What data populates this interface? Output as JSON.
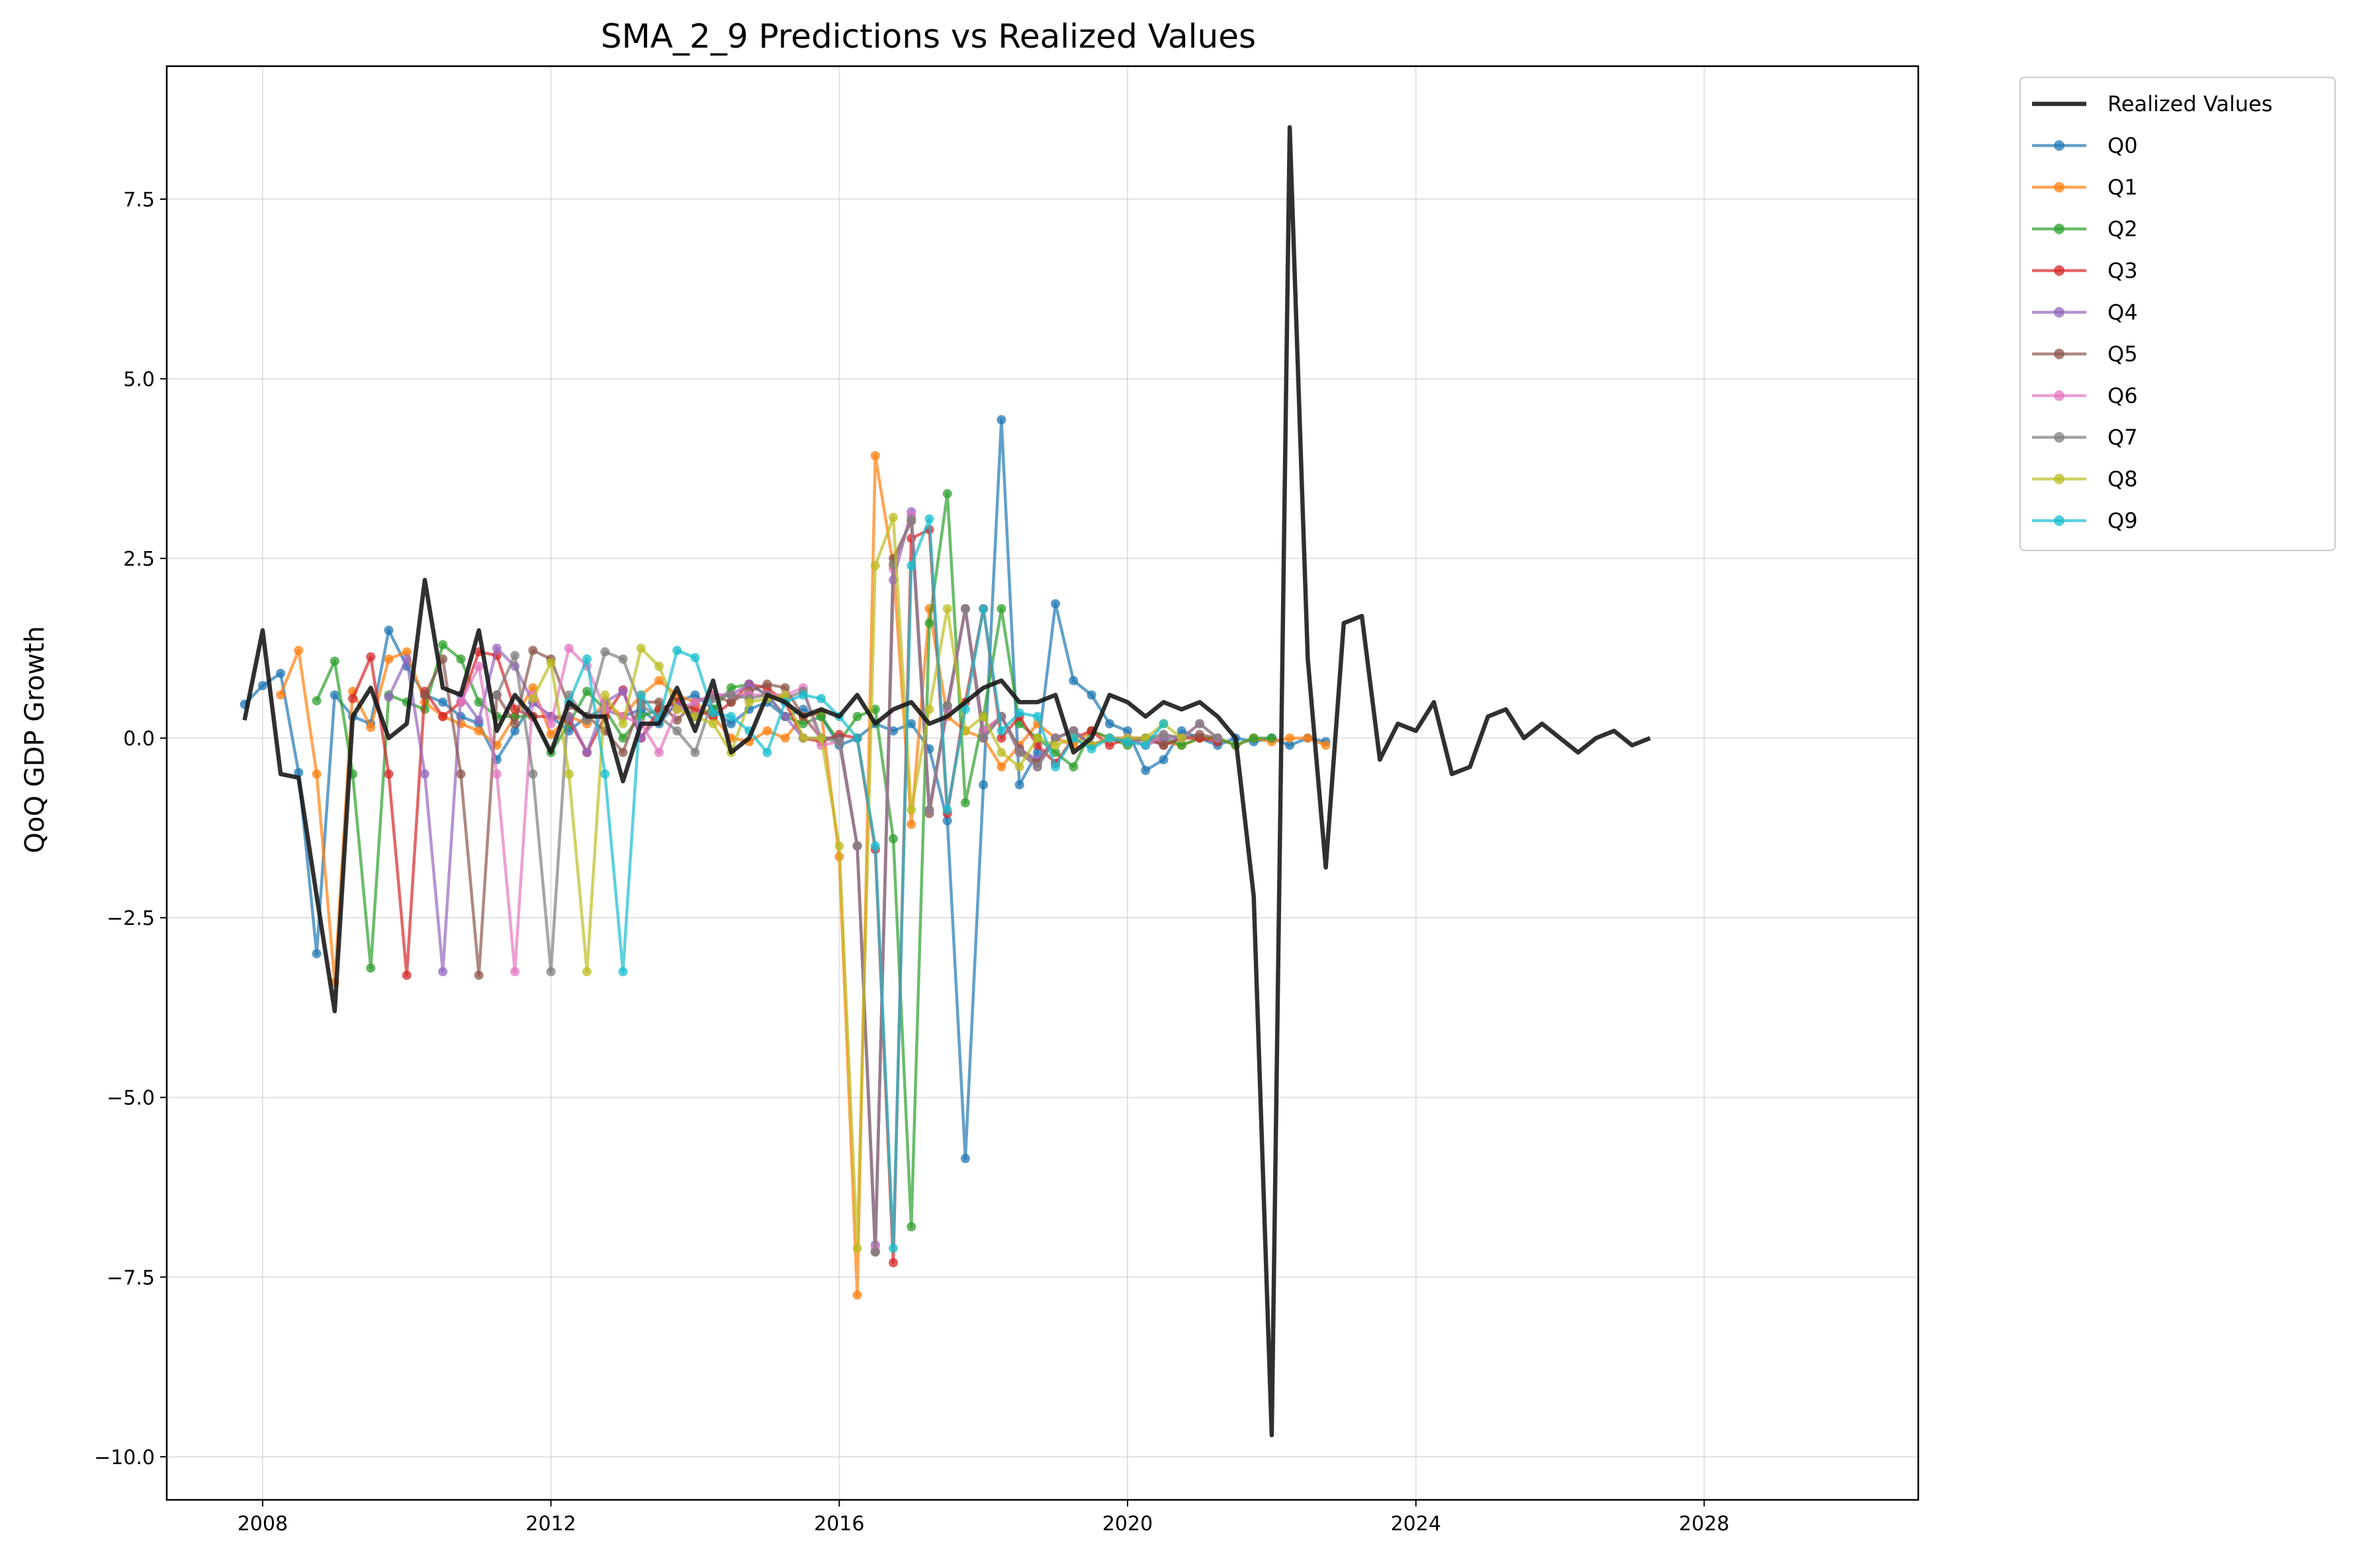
{
  "chart_data": {
    "type": "line",
    "title": "SMA_2_9 Predictions vs Realized Values",
    "xlabel": "",
    "ylabel": "QoQ GDP Growth",
    "xlim": [
      2006.67,
      2030.97
    ],
    "ylim": [
      -10.6,
      9.35
    ],
    "x_ticks": [
      2008,
      2012,
      2016,
      2020,
      2024,
      2028
    ],
    "x_tick_labels": [
      "2008",
      "2012",
      "2016",
      "2020",
      "2024",
      "2028"
    ],
    "y_ticks": [
      7.5,
      5.0,
      2.5,
      0.0,
      -2.5,
      -5.0,
      -7.5,
      -10.0
    ],
    "y_tick_labels": [
      "7.5",
      "5.0",
      "2.5",
      "0.0",
      "−2.5",
      "−5.0",
      "−7.5",
      "−10.0"
    ],
    "grid": true,
    "legend_position": "outside-top-right",
    "colors": {
      "realized": "#1a1a1a",
      "series": [
        "#1f77b4",
        "#ff7f0e",
        "#2ca02c",
        "#d62728",
        "#9467bd",
        "#8c564b",
        "#e377c2",
        "#7f7f7f",
        "#bcbd22",
        "#17becf"
      ]
    },
    "realized": {
      "name": "Realized Values",
      "start": 2007.75,
      "step": 0.25,
      "values": [
        0.25,
        1.5,
        -0.5,
        -0.55,
        -2.2,
        -3.8,
        0.3,
        0.7,
        0.0,
        0.2,
        2.2,
        0.7,
        0.6,
        1.5,
        0.1,
        0.6,
        0.3,
        -0.2,
        0.5,
        0.3,
        0.3,
        -0.6,
        0.2,
        0.2,
        0.7,
        0.1,
        0.8,
        -0.2,
        0.0,
        0.6,
        0.5,
        0.3,
        0.4,
        0.3,
        0.6,
        0.2,
        0.4,
        0.5,
        0.2,
        0.3,
        0.5,
        0.7,
        0.8,
        0.5,
        0.5,
        0.6,
        -0.2,
        0.0,
        0.6,
        0.5,
        0.3,
        0.5,
        0.4,
        0.5,
        0.3,
        0.0,
        -2.2,
        -9.7,
        8.5,
        1.1,
        -1.8,
        1.6,
        1.7,
        -0.3,
        0.2,
        0.1,
        0.5,
        -0.5,
        -0.4,
        0.3,
        0.4,
        0.0,
        0.2,
        0.0,
        -0.2,
        0.0,
        0.1,
        -0.1,
        0.0
      ]
    },
    "series": [
      {
        "name": "Q0",
        "start": 2007.75,
        "values": [
          0.47,
          0.73,
          0.9,
          -0.48,
          -3.0,
          0.6,
          0.3,
          0.2,
          1.5,
          1.0,
          0.6,
          0.5,
          0.3,
          0.2,
          -0.3,
          0.1,
          0.5,
          0.3,
          0.1,
          0.3,
          0.4,
          0.3,
          0.4,
          0.2,
          0.5,
          0.6,
          0.4,
          0.2,
          0.4,
          0.5,
          0.3,
          0.4,
          0.3,
          -0.1,
          0.0,
          0.2,
          0.1,
          0.2,
          -0.15,
          -1.15,
          -5.85,
          -0.65,
          4.43,
          -0.65,
          -0.2,
          1.87,
          0.8,
          0.6,
          0.2,
          0.1,
          -0.45,
          -0.3,
          0.1,
          0.0,
          -0.1,
          0.0,
          -0.05,
          0.0,
          -0.1,
          0.0,
          -0.05
        ]
      },
      {
        "name": "Q1",
        "start": 2008.25,
        "values": [
          0.6,
          1.22,
          -0.5,
          -3.4,
          0.65,
          0.15,
          1.1,
          1.2,
          0.5,
          0.3,
          0.2,
          0.1,
          -0.1,
          0.3,
          0.7,
          0.05,
          0.3,
          0.2,
          0.5,
          0.3,
          0.6,
          0.8,
          0.6,
          0.5,
          0.3,
          0.0,
          -0.05,
          0.1,
          0.0,
          0.3,
          0.35,
          -1.65,
          -7.75,
          3.93,
          2.4,
          -1.2,
          1.8,
          0.3,
          0.1,
          0.0,
          -0.4,
          -0.1,
          0.2,
          0.0,
          -0.1,
          0.1,
          0.0,
          -0.05,
          0.0,
          -0.05,
          -0.1,
          0.0,
          0.0,
          -0.1,
          0.0,
          -0.05,
          0.0,
          0.0,
          -0.1
        ]
      },
      {
        "name": "Q2",
        "start": 2008.75,
        "values": [
          0.52,
          1.07,
          -0.5,
          -3.2,
          0.6,
          0.5,
          0.4,
          1.3,
          1.1,
          0.5,
          0.3,
          0.3,
          0.3,
          -0.2,
          0.2,
          0.65,
          0.4,
          0.0,
          0.3,
          0.4,
          0.5,
          0.3,
          0.4,
          0.7,
          0.75,
          0.6,
          0.3,
          0.2,
          0.3,
          -0.05,
          0.3,
          0.4,
          -1.4,
          -6.8,
          1.6,
          3.4,
          -0.9,
          0.3,
          1.8,
          0.2,
          0.0,
          -0.2,
          -0.4,
          0.1,
          0.0,
          -0.1,
          0.0,
          0.0,
          -0.1,
          0.0,
          0.0,
          -0.1,
          0.0,
          0.0
        ]
      },
      {
        "name": "Q3",
        "start": 2009.25,
        "values": [
          0.55,
          1.13,
          -0.5,
          -3.3,
          0.65,
          0.3,
          0.5,
          1.2,
          1.15,
          0.4,
          0.3,
          0.3,
          0.25,
          -0.2,
          0.3,
          0.67,
          0.0,
          0.4,
          0.5,
          0.4,
          0.3,
          0.5,
          0.75,
          0.7,
          0.5,
          0.0,
          -0.05,
          0.05,
          0.0,
          -1.55,
          -7.3,
          2.78,
          2.9,
          -1.05,
          0.5,
          1.8,
          0.0,
          0.3,
          -0.1,
          -0.35,
          0.0,
          0.1,
          -0.1,
          0.0,
          0.0,
          -0.1,
          0.0,
          0.0,
          -0.05
        ]
      },
      {
        "name": "Q4",
        "start": 2009.75,
        "values": [
          0.57,
          1.1,
          -0.5,
          -3.25,
          0.6,
          0.25,
          1.25,
          1.0,
          0.5,
          0.3,
          0.3,
          -0.2,
          0.5,
          0.65,
          0.0,
          0.3,
          0.45,
          0.3,
          0.6,
          0.6,
          0.75,
          0.6,
          0.3,
          0.0,
          0.0,
          0.0,
          -1.5,
          -7.05,
          2.2,
          3.15,
          -1.0,
          0.4,
          1.8,
          0.0,
          0.3,
          -0.15,
          -0.3,
          0.0,
          0.1,
          -0.1,
          0.0,
          0.0,
          -0.1,
          0.0,
          0.0
        ]
      },
      {
        "name": "Q5",
        "start": 2010.25,
        "values": [
          0.6,
          1.1,
          -0.5,
          -3.3,
          0.6,
          0.2,
          1.22,
          1.1,
          0.45,
          0.3,
          0.1,
          -0.2,
          0.5,
          0.5,
          0.25,
          0.5,
          0.6,
          0.5,
          0.65,
          0.75,
          0.7,
          0.3,
          0.0,
          0.0,
          -1.5,
          -7.15,
          2.5,
          3.02,
          -1.05,
          0.45,
          1.8,
          0.1,
          0.3,
          -0.15,
          -0.35,
          0.0,
          0.1,
          -0.1,
          0.0,
          -0.05,
          0.0,
          -0.1,
          0.0,
          0.05,
          0.0
        ]
      },
      {
        "name": "Q6",
        "start": 2010.75,
        "values": [
          0.5,
          1.0,
          -0.5,
          -3.25,
          0.6,
          0.2,
          1.25,
          1.0,
          0.4,
          0.3,
          0.2,
          -0.2,
          0.4,
          0.5,
          0.6,
          0.6,
          0.6,
          0.6,
          0.6,
          0.7,
          -0.1,
          -0.05,
          -1.5,
          -7.1,
          2.35,
          3.1,
          -1.0,
          0.4,
          1.8,
          0.1,
          0.3,
          -0.2,
          -0.4,
          0.0,
          0.1,
          -0.1,
          0.0,
          0.0,
          -0.1,
          0.05,
          0.0,
          0.2,
          0.0
        ]
      },
      {
        "name": "Q7",
        "start": 2011.25,
        "values": [
          0.6,
          1.15,
          -0.5,
          -3.25,
          0.6,
          0.25,
          1.2,
          1.1,
          0.45,
          0.3,
          0.1,
          -0.2,
          0.55,
          0.6,
          0.55,
          0.6,
          0.55,
          0.65,
          0.0,
          -0.05,
          -1.5,
          -7.15,
          2.42,
          3.05,
          -1.0,
          0.45,
          1.8,
          0.0,
          0.3,
          -0.2,
          -0.4,
          0.0,
          0.1,
          -0.1,
          0.0,
          -0.05,
          0.0,
          0.05,
          0.0,
          0.2,
          0.0
        ]
      },
      {
        "name": "Q8",
        "start": 2011.75,
        "values": [
          0.55,
          1.05,
          -0.5,
          -3.25,
          0.6,
          0.2,
          1.25,
          1.0,
          0.4,
          0.3,
          0.2,
          -0.2,
          0.5,
          0.55,
          0.6,
          0.0,
          0.0,
          -1.5,
          -7.1,
          2.4,
          3.07,
          -1.0,
          0.4,
          1.8,
          0.1,
          0.3,
          -0.2,
          -0.4,
          0.0,
          -0.1,
          0.0,
          -0.1,
          0.0,
          0.0,
          0.0,
          0.2,
          0.0
        ]
      },
      {
        "name": "Q9",
        "start": 2012.25,
        "values": [
          0.5,
          1.1,
          -0.5,
          -3.25,
          0.6,
          0.25,
          1.22,
          1.12,
          0.35,
          0.3,
          0.1,
          -0.2,
          0.5,
          0.6,
          0.55,
          0.3,
          0.0,
          -1.5,
          -7.1,
          2.4,
          3.05,
          -1.0,
          0.4,
          1.8,
          0.1,
          0.35,
          0.3,
          -0.4,
          0.0,
          -0.15,
          0.0,
          -0.05,
          -0.1,
          0.2
        ]
      }
    ]
  }
}
